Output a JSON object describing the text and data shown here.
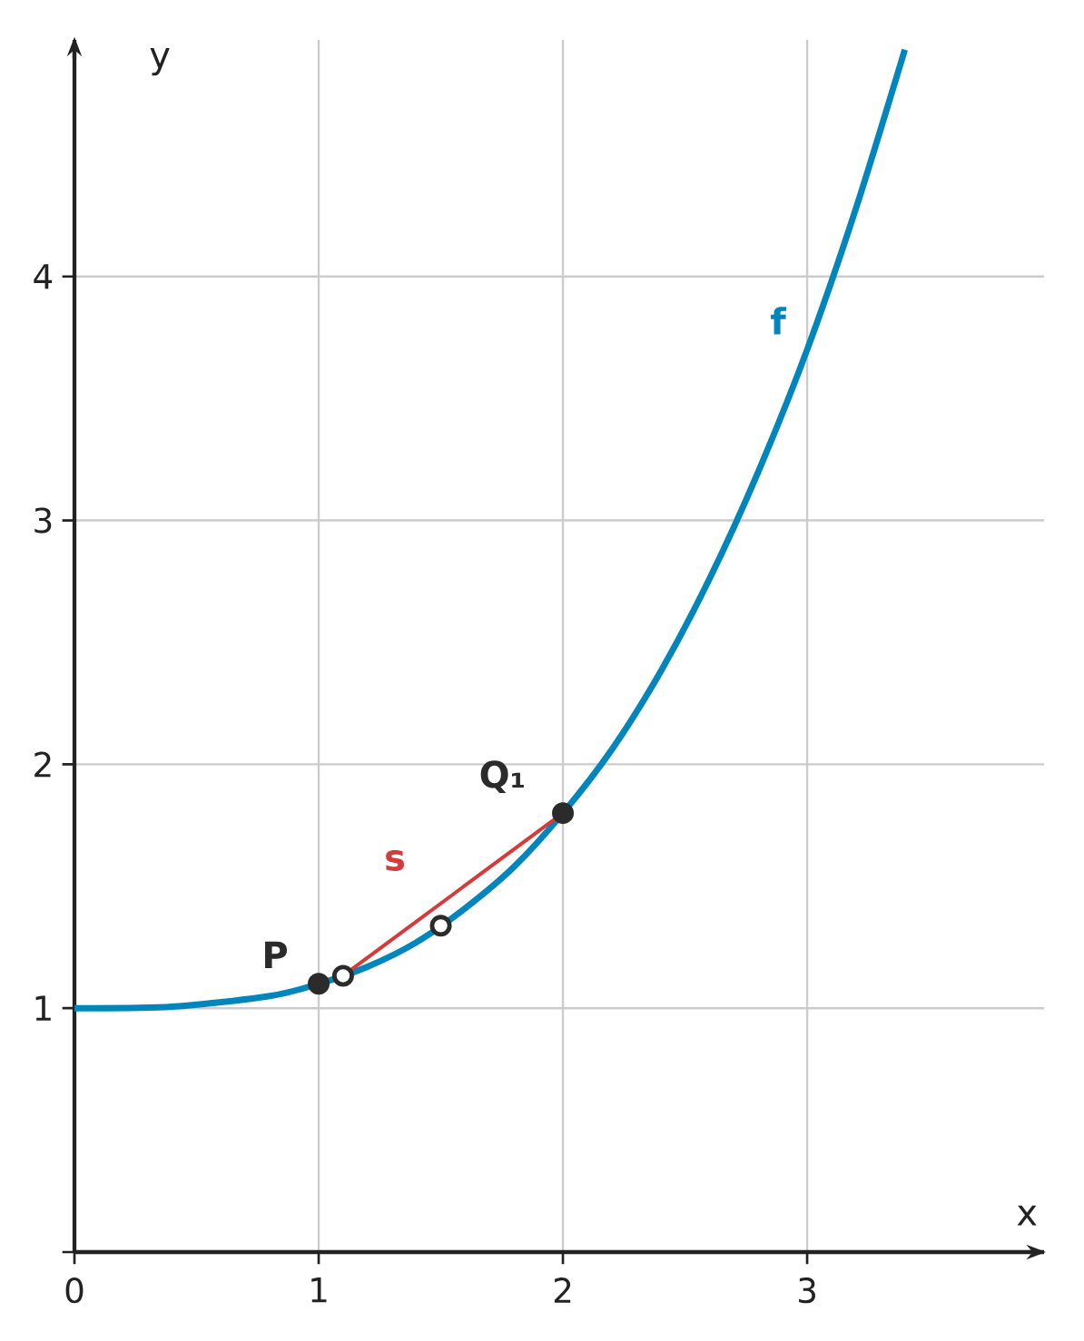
{
  "chart_data": {
    "type": "line",
    "xlabel": "x",
    "ylabel": "y",
    "xlim": [
      0,
      3.97
    ],
    "ylim": [
      0,
      4.97
    ],
    "xticks": [
      0,
      1,
      2,
      3
    ],
    "yticks": [
      {
        "value": 0,
        "label": null
      },
      1,
      2,
      3,
      4
    ],
    "grid": true,
    "series": [
      {
        "color": "#0086bd",
        "x": [
          0,
          0.4,
          0.8,
          1,
          1.2,
          1.4,
          1.6,
          1.8,
          2,
          2.2,
          2.4,
          2.6,
          2.8,
          3,
          3.2,
          3.4
        ],
        "values": [
          1,
          1.006,
          1.05,
          1.1,
          1.17,
          1.27,
          1.41,
          1.58,
          1.8,
          2.06,
          2.38,
          2.76,
          3.2,
          3.7,
          4.28,
          4.93
        ]
      },
      {
        "color": "#d63a3a",
        "x": [
          1.1,
          2
        ],
        "values": [
          1.133,
          1.8
        ]
      },
      {
        "type": "scatter",
        "marker": "circle",
        "color": "#2b2b2b",
        "x": [
          1,
          2
        ],
        "values": [
          1.1,
          1.8
        ]
      },
      {
        "type": "scatter",
        "marker": "circle",
        "color": "#ffffff",
        "x": [
          1.1,
          1.5
        ],
        "values": [
          1.133,
          1.338
        ]
      }
    ],
    "annotations": [
      {
        "text": "f",
        "x": 3,
        "y": 3.7
      },
      {
        "text": "s",
        "x": 1.55,
        "y": 1.4665
      },
      {
        "text": "P",
        "x": 1,
        "y": 1.1
      },
      {
        "text": "Q₁",
        "x": 2,
        "y": 1.8
      }
    ]
  }
}
